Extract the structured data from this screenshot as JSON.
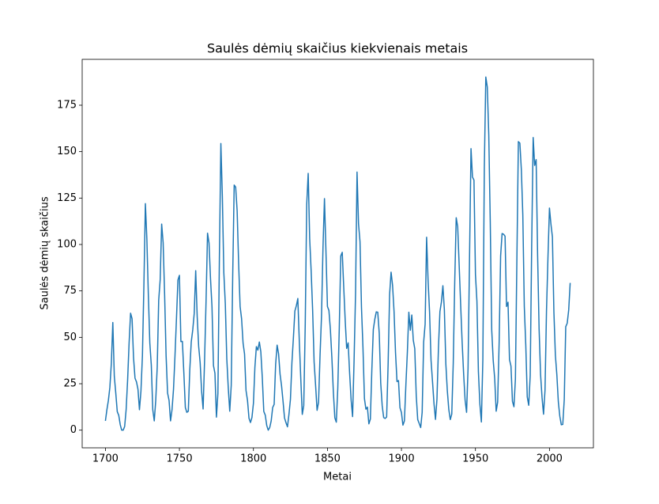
{
  "chart_data": {
    "type": "line",
    "title": "Saulės dėmių skaičius kiekvienais metais",
    "xlabel": "Metai",
    "ylabel": "Saulės dėmių skaičius",
    "xlim": [
      1684.3,
      2029.7
    ],
    "ylim": [
      -9.51,
      199.71
    ],
    "xticks": [
      1700,
      1750,
      1800,
      1850,
      1900,
      1950,
      2000
    ],
    "yticks": [
      0,
      25,
      50,
      75,
      100,
      125,
      150,
      175
    ],
    "x": [
      1700,
      1701,
      1702,
      1703,
      1704,
      1705,
      1706,
      1707,
      1708,
      1709,
      1710,
      1711,
      1712,
      1713,
      1714,
      1715,
      1716,
      1717,
      1718,
      1719,
      1720,
      1721,
      1722,
      1723,
      1724,
      1725,
      1726,
      1727,
      1728,
      1729,
      1730,
      1731,
      1732,
      1733,
      1734,
      1735,
      1736,
      1737,
      1738,
      1739,
      1740,
      1741,
      1742,
      1743,
      1744,
      1745,
      1746,
      1747,
      1748,
      1749,
      1750,
      1751,
      1752,
      1753,
      1754,
      1755,
      1756,
      1757,
      1758,
      1759,
      1760,
      1761,
      1762,
      1763,
      1764,
      1765,
      1766,
      1767,
      1768,
      1769,
      1770,
      1771,
      1772,
      1773,
      1774,
      1775,
      1776,
      1777,
      1778,
      1779,
      1780,
      1781,
      1782,
      1783,
      1784,
      1785,
      1786,
      1787,
      1788,
      1789,
      1790,
      1791,
      1792,
      1793,
      1794,
      1795,
      1796,
      1797,
      1798,
      1799,
      1800,
      1801,
      1802,
      1803,
      1804,
      1805,
      1806,
      1807,
      1808,
      1809,
      1810,
      1811,
      1812,
      1813,
      1814,
      1815,
      1816,
      1817,
      1818,
      1819,
      1820,
      1821,
      1822,
      1823,
      1824,
      1825,
      1826,
      1827,
      1828,
      1829,
      1830,
      1831,
      1832,
      1833,
      1834,
      1835,
      1836,
      1837,
      1838,
      1839,
      1840,
      1841,
      1842,
      1843,
      1844,
      1845,
      1846,
      1847,
      1848,
      1849,
      1850,
      1851,
      1852,
      1853,
      1854,
      1855,
      1856,
      1857,
      1858,
      1859,
      1860,
      1861,
      1862,
      1863,
      1864,
      1865,
      1866,
      1867,
      1868,
      1869,
      1870,
      1871,
      1872,
      1873,
      1874,
      1875,
      1876,
      1877,
      1878,
      1879,
      1880,
      1881,
      1882,
      1883,
      1884,
      1885,
      1886,
      1887,
      1888,
      1889,
      1890,
      1891,
      1892,
      1893,
      1894,
      1895,
      1896,
      1897,
      1898,
      1899,
      1900,
      1901,
      1902,
      1903,
      1904,
      1905,
      1906,
      1907,
      1908,
      1909,
      1910,
      1911,
      1912,
      1913,
      1914,
      1915,
      1916,
      1917,
      1918,
      1919,
      1920,
      1921,
      1922,
      1923,
      1924,
      1925,
      1926,
      1927,
      1928,
      1929,
      1930,
      1931,
      1932,
      1933,
      1934,
      1935,
      1936,
      1937,
      1938,
      1939,
      1940,
      1941,
      1942,
      1943,
      1944,
      1945,
      1946,
      1947,
      1948,
      1949,
      1950,
      1951,
      1952,
      1953,
      1954,
      1955,
      1956,
      1957,
      1958,
      1959,
      1960,
      1961,
      1962,
      1963,
      1964,
      1965,
      1966,
      1967,
      1968,
      1969,
      1970,
      1971,
      1972,
      1973,
      1974,
      1975,
      1976,
      1977,
      1978,
      1979,
      1980,
      1981,
      1982,
      1983,
      1984,
      1985,
      1986,
      1987,
      1988,
      1989,
      1990,
      1991,
      1992,
      1993,
      1994,
      1995,
      1996,
      1997,
      1998,
      1999,
      2000,
      2001,
      2002,
      2003,
      2004,
      2005,
      2006,
      2007,
      2008,
      2009,
      2010,
      2011,
      2012,
      2013,
      2014
    ],
    "series": [
      {
        "name": "Saulės dėmių skaičius",
        "color": "#1f77b4",
        "values": [
          5,
          11,
          16,
          23,
          36,
          58,
          29,
          20,
          10,
          8,
          3,
          0,
          0,
          2,
          11,
          27,
          47,
          63,
          60,
          39,
          28,
          26,
          22,
          11,
          21,
          40,
          78,
          122,
          103,
          73,
          47,
          35,
          11,
          5,
          16,
          34,
          70,
          81,
          111,
          101,
          73,
          40,
          20,
          16,
          5,
          11,
          22,
          40,
          60,
          80.9,
          83.4,
          47.7,
          47.8,
          30.7,
          12.2,
          9.6,
          10.2,
          32.4,
          47.6,
          54,
          62.9,
          85.9,
          61.2,
          45.1,
          36.4,
          20.9,
          11.4,
          37.8,
          69.8,
          106.1,
          100.8,
          81.6,
          66.5,
          34.8,
          30.6,
          7,
          19.8,
          92.5,
          154.4,
          125.9,
          84.8,
          68.1,
          38.5,
          22.8,
          10.2,
          24.1,
          82.9,
          132,
          130.9,
          118.1,
          89.9,
          66.6,
          60,
          46.9,
          41,
          21.3,
          16,
          6.4,
          4.1,
          6.8,
          14.5,
          34,
          45,
          43.1,
          47.5,
          42.2,
          28.1,
          10.1,
          8.1,
          2.5,
          0,
          1.4,
          5,
          12.2,
          13.9,
          35.4,
          45.8,
          41.1,
          30.1,
          23.9,
          15.6,
          6.6,
          4,
          1.8,
          8.5,
          16.6,
          36.3,
          49.6,
          64.2,
          67,
          70.9,
          47.8,
          27.5,
          8.5,
          13.2,
          56.9,
          121.5,
          138.3,
          103.2,
          85.7,
          64.6,
          36.7,
          24.2,
          10.7,
          15,
          40.1,
          61.5,
          98.5,
          124.7,
          96.3,
          66.6,
          64.5,
          54.1,
          39,
          20.6,
          6.7,
          4.3,
          22.7,
          54.8,
          93.8,
          95.8,
          77.2,
          59.1,
          44,
          47,
          30.5,
          16.3,
          7.3,
          37.6,
          74,
          139,
          111.2,
          101.6,
          66.2,
          44.7,
          17,
          11.3,
          12.4,
          3.4,
          6,
          32.3,
          54.3,
          59.7,
          63.7,
          63.5,
          52.2,
          25.4,
          13.1,
          6.8,
          6.3,
          7.1,
          35.6,
          73,
          85.1,
          78,
          64,
          41.8,
          26.2,
          26.7,
          12.1,
          9.5,
          2.7,
          5,
          24.4,
          42,
          63.5,
          53.8,
          62,
          48.5,
          43.9,
          18.6,
          5.7,
          3.6,
          1.4,
          9.6,
          47.4,
          57.1,
          103.9,
          80.6,
          63.6,
          37.6,
          26.1,
          14.2,
          5.8,
          16.7,
          44.3,
          63.9,
          69,
          77.8,
          64.9,
          35.7,
          21.2,
          11.1,
          5.7,
          8.7,
          36.1,
          79.7,
          114.4,
          109.6,
          88.8,
          67.8,
          47.5,
          30.6,
          16.3,
          9.6,
          33.2,
          92.6,
          151.6,
          136.3,
          134.7,
          83.9,
          69.4,
          31.5,
          13.9,
          4.4,
          38,
          141.7,
          190.2,
          184.8,
          159,
          112.3,
          53.9,
          37.5,
          27.9,
          10.2,
          15.1,
          47,
          93.8,
          105.9,
          105.5,
          104.5,
          66.6,
          68.9,
          38,
          34.5,
          15.5,
          12.6,
          27.5,
          92.5,
          155.4,
          154.6,
          140.4,
          115.9,
          66.6,
          45.9,
          17.9,
          13.4,
          29.4,
          100.2,
          157.6,
          142.6,
          145.7,
          94.3,
          54.6,
          29.9,
          17.5,
          8.6,
          21.5,
          64.3,
          93.3,
          119.6,
          111,
          104,
          63.7,
          40.4,
          29.8,
          15.2,
          7.5,
          2.9,
          3.1,
          16.5,
          55.7,
          57.6,
          64.7,
          79.3
        ]
      }
    ]
  }
}
